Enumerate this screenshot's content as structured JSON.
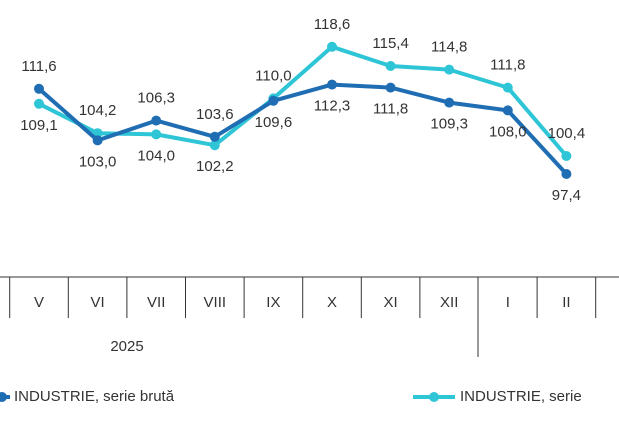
{
  "chart_data": {
    "type": "line",
    "categories": [
      "V",
      "VI",
      "VII",
      "VIII",
      "IX",
      "X",
      "XI",
      "XII",
      "I",
      "II"
    ],
    "year_label": "2025",
    "series": [
      {
        "name": "INDUSTRIE, serie brută",
        "color": "#1f6db3",
        "values": [
          111.6,
          103.0,
          106.3,
          103.6,
          109.6,
          112.3,
          111.8,
          109.3,
          108.0,
          97.4
        ],
        "value_labels": [
          "111,6",
          "103,0",
          "106,3",
          "103,6",
          "109,6",
          "112,3",
          "111,8",
          "109,3",
          "108,0",
          "97,4"
        ]
      },
      {
        "name": "INDUSTRIE, serie",
        "color": "#2ec5d6",
        "values": [
          109.1,
          104.2,
          104.0,
          102.2,
          110.0,
          118.6,
          115.4,
          114.8,
          111.8,
          100.4
        ],
        "value_labels": [
          "109,1",
          "104,2",
          "104,0",
          "102,2",
          "110,0",
          "118,6",
          "115,4",
          "114,8",
          "111,8",
          "100,4"
        ]
      }
    ],
    "ylim": [
      80.4,
      126.4
    ]
  }
}
